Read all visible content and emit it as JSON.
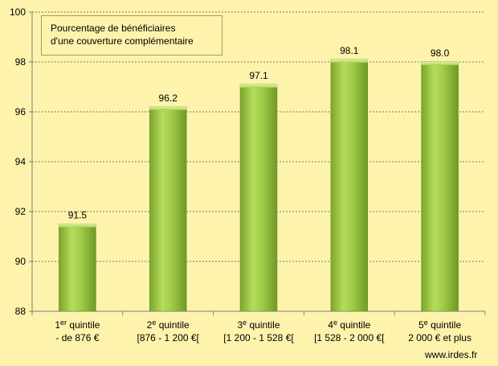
{
  "chart_data": {
    "type": "bar",
    "title_lines": [
      "Pourcentage de bénéficiaires",
      "d'une couverture complémentaire"
    ],
    "categories": [
      {
        "ordinal": "1",
        "sup": "er",
        "word": " quintile",
        "range": "- de 876 €"
      },
      {
        "ordinal": "2",
        "sup": "e",
        "word": " quintile",
        "range": "[876 - 1 200 €["
      },
      {
        "ordinal": "3",
        "sup": "e",
        "word": " quintile",
        "range": "[1 200 - 1 528 €["
      },
      {
        "ordinal": "4",
        "sup": "e",
        "word": " quintile",
        "range": "[1 528 - 2 000 €["
      },
      {
        "ordinal": "5",
        "sup": "e",
        "word": " quintile",
        "range": "2 000 € et plus"
      }
    ],
    "values": [
      91.5,
      96.2,
      97.1,
      98.1,
      98.0
    ],
    "value_labels": [
      "91.5",
      "96.2",
      "97.1",
      "98.1",
      "98.0"
    ],
    "ylim": [
      88,
      100
    ],
    "yticks": [
      88,
      90,
      92,
      94,
      96,
      98,
      100
    ],
    "grid": true,
    "bar_color": "#8cbe3a",
    "bar_highlight": "#c8e57a"
  },
  "source": "www.irdes.fr"
}
